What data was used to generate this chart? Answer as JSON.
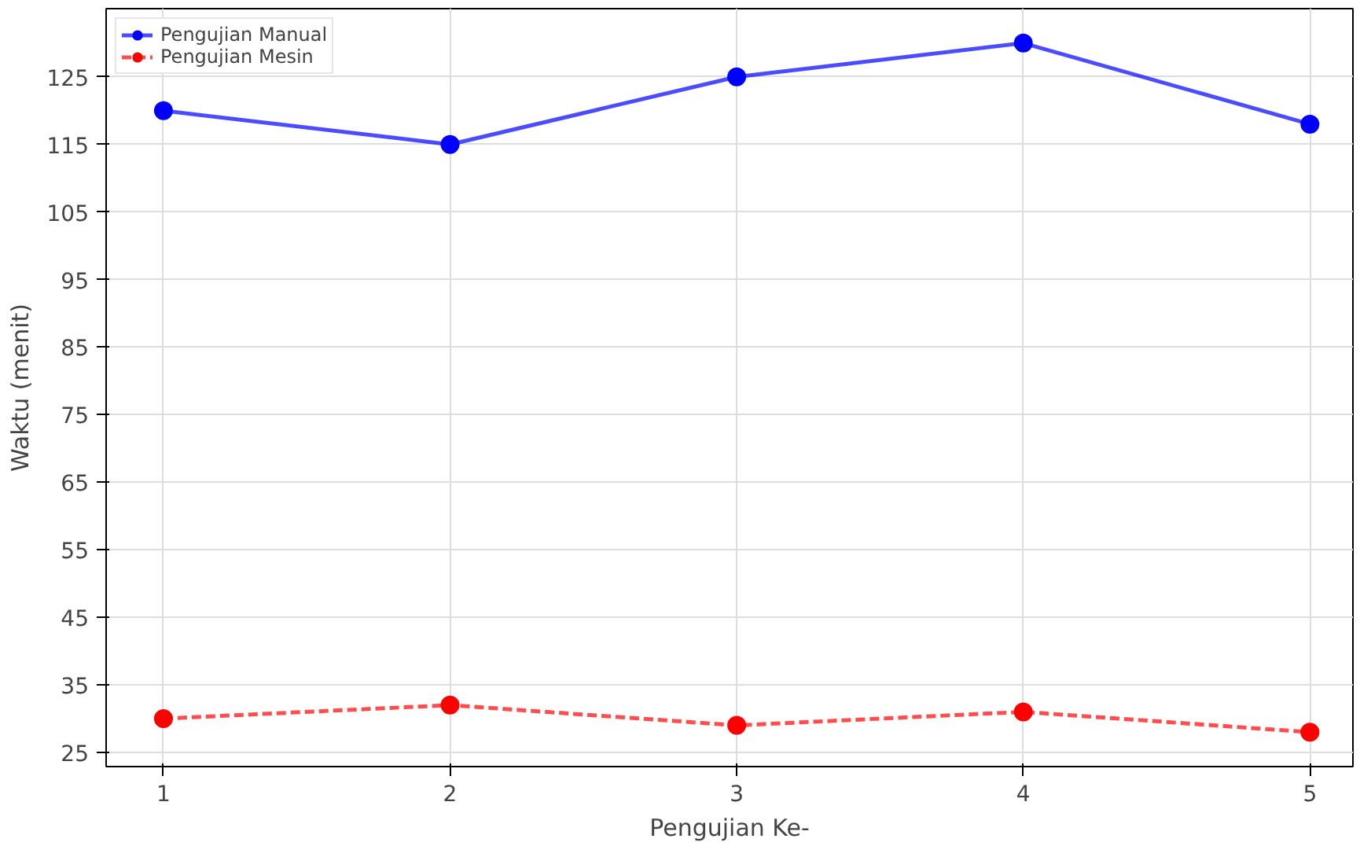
{
  "chart_data": {
    "type": "line",
    "xlabel": "Pengujian Ke-",
    "ylabel": "Waktu (menit)",
    "x": [
      1,
      2,
      3,
      4,
      5
    ],
    "series": [
      {
        "name": "Pengujian Manual",
        "color": "#0000ff",
        "values": [
          120,
          115,
          125,
          130,
          118
        ],
        "line_style": "solid"
      },
      {
        "name": "Pengujian Mesin",
        "color": "#ff0000",
        "values": [
          30,
          32,
          29,
          31,
          28
        ],
        "line_style": "dashed"
      }
    ],
    "xlim": [
      0.8,
      5.15
    ],
    "ylim": [
      22.9,
      135.1
    ],
    "xticks": [
      1,
      2,
      3,
      4,
      5
    ],
    "yticks": [
      25,
      35,
      45,
      55,
      65,
      75,
      85,
      95,
      105,
      115,
      125
    ],
    "grid": true,
    "legend": "top left",
    "marker": "circle"
  }
}
